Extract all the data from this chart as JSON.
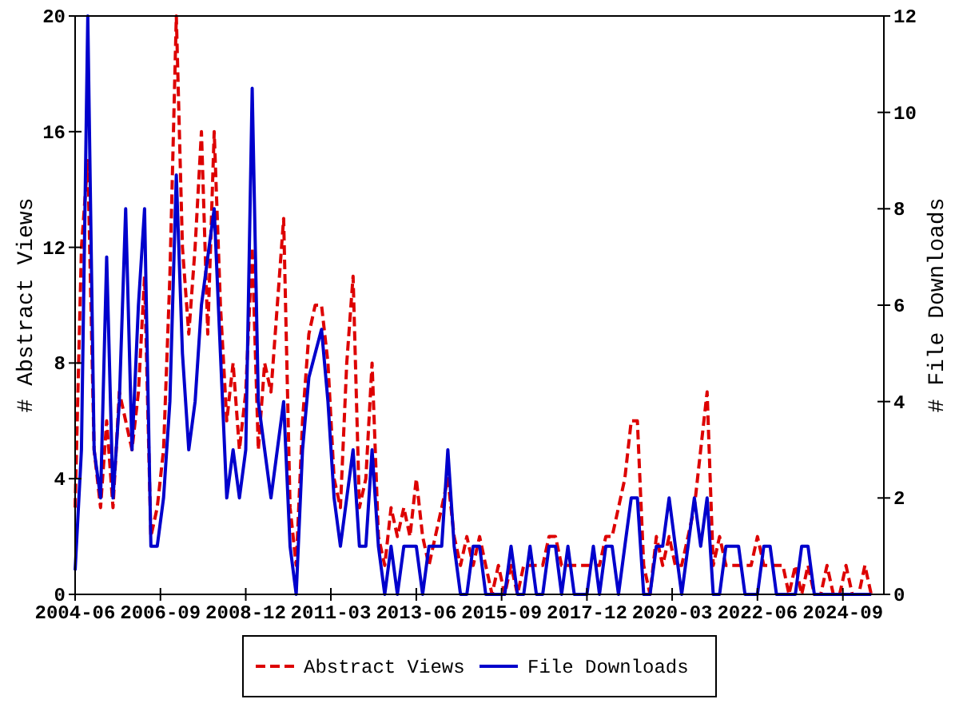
{
  "chart_data": {
    "type": "line",
    "ylabel": "# Abstract Views",
    "y2label": "# File Downloads",
    "x": [
      "2004-06",
      "2004-08",
      "2004-10",
      "2004-12",
      "2005-02",
      "2005-04",
      "2005-06",
      "2005-08",
      "2005-10",
      "2005-12",
      "2006-02",
      "2006-04",
      "2006-06",
      "2006-08",
      "2006-10",
      "2006-12",
      "2007-02",
      "2007-04",
      "2007-06",
      "2007-08",
      "2007-10",
      "2007-12",
      "2008-02",
      "2008-04",
      "2008-06",
      "2008-08",
      "2008-10",
      "2008-12",
      "2009-02",
      "2009-04",
      "2009-06",
      "2009-08",
      "2009-10",
      "2009-12",
      "2010-02",
      "2010-04",
      "2010-06",
      "2010-08",
      "2010-10",
      "2010-12",
      "2011-02",
      "2011-04",
      "2011-06",
      "2011-08",
      "2011-10",
      "2011-12",
      "2012-02",
      "2012-04",
      "2012-06",
      "2012-08",
      "2012-10",
      "2012-12",
      "2013-02",
      "2013-04",
      "2013-06",
      "2013-08",
      "2013-10",
      "2013-12",
      "2014-02",
      "2014-04",
      "2014-06",
      "2014-08",
      "2014-10",
      "2014-12",
      "2015-02",
      "2015-04",
      "2015-06",
      "2015-08",
      "2015-10",
      "2015-12",
      "2016-02",
      "2016-04",
      "2016-06",
      "2016-08",
      "2016-10",
      "2016-12",
      "2017-02",
      "2017-04",
      "2017-06",
      "2017-08",
      "2017-10",
      "2017-12",
      "2018-02",
      "2018-04",
      "2018-06",
      "2018-08",
      "2018-10",
      "2018-12",
      "2019-02",
      "2019-04",
      "2019-06",
      "2019-08",
      "2019-10",
      "2019-12",
      "2020-02",
      "2020-04",
      "2020-06",
      "2020-08",
      "2020-10",
      "2020-12",
      "2021-02",
      "2021-04",
      "2021-06",
      "2021-08",
      "2021-10",
      "2021-12",
      "2022-02",
      "2022-04",
      "2022-06",
      "2022-08",
      "2022-10",
      "2022-12",
      "2023-02",
      "2023-04",
      "2023-06",
      "2023-08",
      "2023-10",
      "2023-12",
      "2024-02",
      "2024-04",
      "2024-06",
      "2024-08",
      "2024-10",
      "2024-12",
      "2025-02",
      "2025-04",
      "2025-06"
    ],
    "xlim": [
      "2004-06",
      "2025-10"
    ],
    "xticks": [
      {
        "value": "2004-06",
        "label": "2004-06"
      },
      {
        "value": "2006-09",
        "label": "2006-09"
      },
      {
        "value": "2008-12",
        "label": "2008-12"
      },
      {
        "value": "2011-03",
        "label": "2011-03"
      },
      {
        "value": "2013-06",
        "label": "2013-06"
      },
      {
        "value": "2015-09",
        "label": "2015-09"
      },
      {
        "value": "2017-12",
        "label": "2017-12"
      },
      {
        "value": "2020-03",
        "label": "2020-03"
      },
      {
        "value": "2022-06",
        "label": "2022-06"
      },
      {
        "value": "2024-09",
        "label": "2024-09"
      }
    ],
    "ylim": [
      0,
      20
    ],
    "yticks": [
      0,
      4,
      8,
      12,
      16,
      20
    ],
    "y2lim": [
      0,
      12
    ],
    "y2ticks": [
      0,
      2,
      4,
      6,
      8,
      10,
      12
    ],
    "legend": "bottom",
    "marker": "none",
    "grid": false,
    "series": [
      {
        "name": "Abstract Views",
        "color": "#dd0000",
        "line_style": "dashed",
        "values": [
          3,
          12,
          15,
          5,
          3,
          6,
          3,
          7,
          6,
          5,
          7,
          11,
          2,
          3,
          5,
          11,
          20,
          12,
          9,
          12,
          16,
          9,
          16,
          10,
          6,
          8,
          5,
          7,
          12,
          5,
          8,
          7,
          10,
          13,
          3,
          1,
          6,
          9,
          10,
          10,
          8,
          4,
          3,
          8,
          11,
          3,
          4,
          8,
          2,
          1,
          3,
          2,
          3,
          2,
          4,
          2,
          1,
          2,
          3,
          4,
          2,
          1,
          2,
          1,
          2,
          1,
          0,
          1,
          0,
          1,
          0,
          1,
          1,
          1,
          1,
          2,
          2,
          1,
          1,
          1,
          1,
          1,
          1,
          1,
          2,
          2,
          3,
          4,
          6,
          6,
          1,
          0,
          2,
          1,
          2,
          1,
          1,
          2,
          3,
          5,
          7,
          1,
          2,
          1,
          1,
          1,
          1,
          1,
          2,
          1,
          1,
          1,
          1,
          0,
          1,
          0,
          1,
          0,
          0,
          1,
          0,
          0,
          1,
          0,
          0,
          1,
          0
        ]
      },
      {
        "name": "File Downloads",
        "color": "#0000cc",
        "line_style": "solid",
        "axis": "y2",
        "values": [
          0.5,
          3,
          12,
          3,
          2,
          7,
          2,
          4,
          8,
          3,
          6,
          8,
          1,
          1,
          2,
          4,
          8.7,
          5,
          3,
          4,
          6,
          7,
          8,
          5,
          2,
          3,
          2,
          3,
          10.5,
          4,
          3,
          2,
          3,
          4,
          1,
          0,
          3,
          4.5,
          5,
          5.5,
          4,
          2,
          1,
          2,
          3,
          1,
          1,
          3,
          1,
          0,
          1,
          0,
          1,
          1,
          1,
          0,
          1,
          1,
          1,
          3,
          1,
          0,
          0,
          1,
          1,
          0,
          0,
          0,
          0,
          1,
          0,
          0,
          1,
          0,
          0,
          1,
          1,
          0,
          1,
          0,
          0,
          0,
          1,
          0,
          1,
          1,
          0,
          1,
          2,
          2,
          0,
          0,
          1,
          1,
          2,
          1,
          0,
          1,
          2,
          1,
          2,
          0,
          0,
          1,
          1,
          1,
          0,
          0,
          0,
          1,
          1,
          0,
          0,
          0,
          0,
          1,
          1,
          0,
          0,
          0,
          0,
          0,
          0,
          0,
          0,
          0,
          0
        ]
      }
    ]
  }
}
